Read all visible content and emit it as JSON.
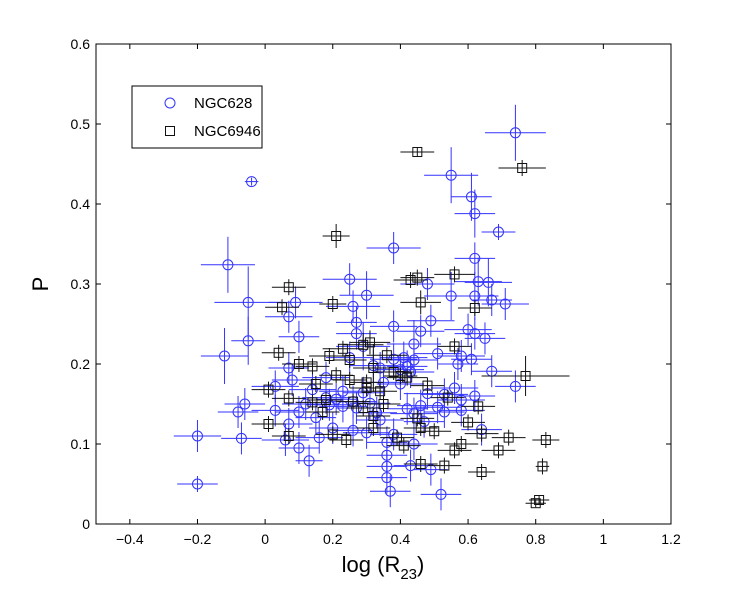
{
  "chart_data": {
    "type": "scatter",
    "title": "",
    "xlabel": "log (R",
    "xlabel_sub": "23",
    "xlabel_close": ")",
    "ylabel": "P",
    "xlim": [
      -0.5,
      1.2
    ],
    "ylim": [
      0,
      0.6
    ],
    "xticks": [
      -0.4,
      -0.2,
      0,
      0.2,
      0.4,
      0.6,
      0.8,
      1,
      1.2
    ],
    "xtick_labels": [
      "−0.4",
      "−0.2",
      "0",
      "0.2",
      "0.4",
      "0.6",
      "0.8",
      "1",
      "1.2"
    ],
    "yticks": [
      0,
      0.1,
      0.2,
      0.3,
      0.4,
      0.5,
      0.6
    ],
    "ytick_labels": [
      "0",
      "0.1",
      "0.2",
      "0.3",
      "0.4",
      "0.5",
      "0.6"
    ],
    "grid": false,
    "legend_position": "top-left",
    "series": [
      {
        "name": "NGC628",
        "marker": "circle",
        "color": "#3333ff",
        "points": [
          [
            0.74,
            0.489,
            0.09,
            0.035
          ],
          [
            -0.04,
            0.428,
            0.02,
            0.005
          ],
          [
            0.55,
            0.436,
            0.08,
            0.035
          ],
          [
            0.61,
            0.409,
            0.06,
            0.03
          ],
          [
            0.62,
            0.388,
            0.06,
            0.03
          ],
          [
            0.69,
            0.365,
            0.05,
            0.01
          ],
          [
            -0.11,
            0.324,
            0.08,
            0.035
          ],
          [
            0.38,
            0.345,
            0.08,
            0.02
          ],
          [
            0.62,
            0.332,
            0.06,
            0.02
          ],
          [
            0.25,
            0.306,
            0.08,
            0.02
          ],
          [
            0.63,
            0.303,
            0.07,
            0.03
          ],
          [
            0.66,
            0.302,
            0.07,
            0.03
          ],
          [
            0.48,
            0.3,
            0.08,
            0.02
          ],
          [
            0.3,
            0.286,
            0.08,
            0.03
          ],
          [
            0.55,
            0.285,
            0.08,
            0.03
          ],
          [
            0.62,
            0.285,
            0.07,
            0.03
          ],
          [
            -0.05,
            0.277,
            0.1,
            0.045
          ],
          [
            0.09,
            0.277,
            0.08,
            0.02
          ],
          [
            0.67,
            0.28,
            0.06,
            0.02
          ],
          [
            0.71,
            0.275,
            0.07,
            0.02
          ],
          [
            0.26,
            0.272,
            0.08,
            0.02
          ],
          [
            0.07,
            0.259,
            0.07,
            0.02
          ],
          [
            0.49,
            0.254,
            0.07,
            0.02
          ],
          [
            0.27,
            0.252,
            0.06,
            0.02
          ],
          [
            0.38,
            0.247,
            0.07,
            0.02
          ],
          [
            0.6,
            0.243,
            0.07,
            0.02
          ],
          [
            0.46,
            0.241,
            0.07,
            0.02
          ],
          [
            0.27,
            0.238,
            0.06,
            0.02
          ],
          [
            0.62,
            0.238,
            0.06,
            0.02
          ],
          [
            0.1,
            0.234,
            0.06,
            0.02
          ],
          [
            -0.05,
            0.229,
            0.05,
            0.03
          ],
          [
            0.65,
            0.232,
            0.06,
            0.02
          ],
          [
            0.44,
            0.225,
            0.08,
            0.03
          ],
          [
            0.29,
            0.222,
            0.08,
            0.03
          ],
          [
            -0.12,
            0.21,
            0.07,
            0.035
          ],
          [
            0.51,
            0.213,
            0.07,
            0.02
          ],
          [
            0.25,
            0.208,
            0.07,
            0.02
          ],
          [
            0.38,
            0.206,
            0.07,
            0.02
          ],
          [
            0.41,
            0.208,
            0.07,
            0.02
          ],
          [
            0.44,
            0.205,
            0.07,
            0.02
          ],
          [
            0.58,
            0.21,
            0.07,
            0.02
          ],
          [
            0.61,
            0.206,
            0.06,
            0.02
          ],
          [
            0.32,
            0.198,
            0.07,
            0.02
          ],
          [
            0.42,
            0.197,
            0.06,
            0.02
          ],
          [
            0.57,
            0.2,
            0.06,
            0.02
          ],
          [
            0.07,
            0.195,
            0.06,
            0.02
          ],
          [
            0.34,
            0.195,
            0.07,
            0.02
          ],
          [
            0.4,
            0.193,
            0.07,
            0.02
          ],
          [
            0.43,
            0.19,
            0.07,
            0.02
          ],
          [
            0.67,
            0.191,
            0.06,
            0.02
          ],
          [
            0.08,
            0.18,
            0.06,
            0.02
          ],
          [
            0.18,
            0.183,
            0.07,
            0.02
          ],
          [
            0.35,
            0.177,
            0.07,
            0.02
          ],
          [
            0.4,
            0.175,
            0.07,
            0.02
          ],
          [
            0.56,
            0.17,
            0.07,
            0.02
          ],
          [
            0.74,
            0.172,
            0.06,
            0.02
          ],
          [
            0.03,
            0.172,
            0.07,
            0.02
          ],
          [
            0.14,
            0.168,
            0.07,
            0.02
          ],
          [
            0.23,
            0.166,
            0.07,
            0.02
          ],
          [
            0.29,
            0.164,
            0.06,
            0.02
          ],
          [
            0.48,
            0.163,
            0.07,
            0.02
          ],
          [
            0.53,
            0.162,
            0.07,
            0.02
          ],
          [
            0.62,
            0.16,
            0.06,
            0.02
          ],
          [
            0.18,
            0.158,
            0.07,
            0.02
          ],
          [
            0.21,
            0.156,
            0.06,
            0.02
          ],
          [
            0.26,
            0.153,
            0.07,
            0.02
          ],
          [
            0.31,
            0.151,
            0.06,
            0.02
          ],
          [
            0.46,
            0.148,
            0.07,
            0.02
          ],
          [
            0.58,
            0.155,
            0.07,
            0.02
          ],
          [
            -0.06,
            0.15,
            0.06,
            0.02
          ],
          [
            0.12,
            0.15,
            0.07,
            0.02
          ],
          [
            0.19,
            0.149,
            0.07,
            0.02
          ],
          [
            0.23,
            0.147,
            0.07,
            0.02
          ],
          [
            0.27,
            0.145,
            0.06,
            0.02
          ],
          [
            0.42,
            0.144,
            0.06,
            0.02
          ],
          [
            0.51,
            0.146,
            0.07,
            0.02
          ],
          [
            0.58,
            0.142,
            0.07,
            0.02
          ],
          [
            -0.08,
            0.14,
            0.06,
            0.02
          ],
          [
            0.03,
            0.142,
            0.07,
            0.02
          ],
          [
            0.1,
            0.14,
            0.07,
            0.02
          ],
          [
            0.33,
            0.139,
            0.06,
            0.02
          ],
          [
            0.44,
            0.138,
            0.07,
            0.02
          ],
          [
            0.53,
            0.14,
            0.06,
            0.02
          ],
          [
            0.15,
            0.133,
            0.06,
            0.02
          ],
          [
            0.34,
            0.13,
            0.07,
            0.02
          ],
          [
            0.47,
            0.128,
            0.06,
            0.02
          ],
          [
            0.07,
            0.125,
            0.07,
            0.02
          ],
          [
            0.2,
            0.12,
            0.07,
            0.02
          ],
          [
            0.26,
            0.117,
            0.06,
            0.02
          ],
          [
            0.64,
            0.118,
            0.06,
            0.02
          ],
          [
            0.3,
            0.114,
            0.07,
            0.02
          ],
          [
            0.38,
            0.112,
            0.07,
            0.02
          ],
          [
            -0.2,
            0.11,
            0.07,
            0.02
          ],
          [
            0.16,
            0.108,
            0.07,
            0.02
          ],
          [
            -0.07,
            0.107,
            0.06,
            0.02
          ],
          [
            0.06,
            0.105,
            0.07,
            0.02
          ],
          [
            0.36,
            0.102,
            0.06,
            0.02
          ],
          [
            0.44,
            0.1,
            0.07,
            0.02
          ],
          [
            0.1,
            0.095,
            0.06,
            0.02
          ],
          [
            0.36,
            0.086,
            0.06,
            0.02
          ],
          [
            0.13,
            0.079,
            0.04,
            0.02
          ],
          [
            0.43,
            0.073,
            0.05,
            0.02
          ],
          [
            0.36,
            0.072,
            0.06,
            0.02
          ],
          [
            0.49,
            0.068,
            0.05,
            0.02
          ],
          [
            0.36,
            0.058,
            0.06,
            0.02
          ],
          [
            -0.2,
            0.05,
            0.06,
            0.01
          ],
          [
            0.37,
            0.041,
            0.06,
            0.02
          ],
          [
            0.52,
            0.037,
            0.06,
            0.02
          ]
        ]
      },
      {
        "name": "NGC6946",
        "marker": "square",
        "color": "#111111",
        "points": [
          [
            0.45,
            0.465,
            0.05,
            0.005
          ],
          [
            0.76,
            0.445,
            0.07,
            0.01
          ],
          [
            0.21,
            0.36,
            0.04,
            0.015
          ],
          [
            0.56,
            0.312,
            0.06,
            0.01
          ],
          [
            0.45,
            0.308,
            0.05,
            0.01
          ],
          [
            0.43,
            0.305,
            0.05,
            0.01
          ],
          [
            0.07,
            0.296,
            0.05,
            0.01
          ],
          [
            0.46,
            0.277,
            0.06,
            0.015
          ],
          [
            0.2,
            0.275,
            0.04,
            0.01
          ],
          [
            0.05,
            0.271,
            0.05,
            0.01
          ],
          [
            0.62,
            0.27,
            0.05,
            0.01
          ],
          [
            0.31,
            0.227,
            0.06,
            0.015
          ],
          [
            0.29,
            0.224,
            0.06,
            0.015
          ],
          [
            0.23,
            0.219,
            0.06,
            0.01
          ],
          [
            0.56,
            0.222,
            0.05,
            0.01
          ],
          [
            0.04,
            0.214,
            0.05,
            0.01
          ],
          [
            0.19,
            0.21,
            0.06,
            0.01
          ],
          [
            0.36,
            0.211,
            0.06,
            0.01
          ],
          [
            0.25,
            0.205,
            0.05,
            0.01
          ],
          [
            0.1,
            0.2,
            0.05,
            0.01
          ],
          [
            0.14,
            0.197,
            0.05,
            0.01
          ],
          [
            0.32,
            0.195,
            0.06,
            0.03
          ],
          [
            0.38,
            0.19,
            0.06,
            0.01
          ],
          [
            0.21,
            0.186,
            0.05,
            0.01
          ],
          [
            0.77,
            0.185,
            0.13,
            0.025
          ],
          [
            0.4,
            0.185,
            0.05,
            0.01
          ],
          [
            0.42,
            0.183,
            0.06,
            0.01
          ],
          [
            0.25,
            0.18,
            0.05,
            0.01
          ],
          [
            0.3,
            0.177,
            0.05,
            0.01
          ],
          [
            0.15,
            0.175,
            0.05,
            0.01
          ],
          [
            0.48,
            0.173,
            0.05,
            0.01
          ],
          [
            0.3,
            0.17,
            0.05,
            0.01
          ],
          [
            0.01,
            0.168,
            0.05,
            0.01
          ],
          [
            0.34,
            0.166,
            0.05,
            0.01
          ],
          [
            0.54,
            0.158,
            0.05,
            0.01
          ],
          [
            0.26,
            0.153,
            0.05,
            0.01
          ],
          [
            0.07,
            0.157,
            0.05,
            0.01
          ],
          [
            0.18,
            0.155,
            0.05,
            0.01
          ],
          [
            0.14,
            0.152,
            0.05,
            0.01
          ],
          [
            0.35,
            0.15,
            0.05,
            0.01
          ],
          [
            0.63,
            0.147,
            0.05,
            0.01
          ],
          [
            0.29,
            0.145,
            0.05,
            0.01
          ],
          [
            0.17,
            0.14,
            0.05,
            0.01
          ],
          [
            0.32,
            0.135,
            0.05,
            0.01
          ],
          [
            0.45,
            0.132,
            0.05,
            0.01
          ],
          [
            0.6,
            0.127,
            0.05,
            0.01
          ],
          [
            0.01,
            0.125,
            0.05,
            0.01
          ],
          [
            0.32,
            0.12,
            0.05,
            0.01
          ],
          [
            0.46,
            0.12,
            0.05,
            0.01
          ],
          [
            0.5,
            0.116,
            0.05,
            0.01
          ],
          [
            0.64,
            0.113,
            0.05,
            0.01
          ],
          [
            0.72,
            0.108,
            0.05,
            0.01
          ],
          [
            0.83,
            0.105,
            0.04,
            0.01
          ],
          [
            0.2,
            0.112,
            0.05,
            0.01
          ],
          [
            0.24,
            0.105,
            0.05,
            0.01
          ],
          [
            0.39,
            0.108,
            0.05,
            0.01
          ],
          [
            0.07,
            0.11,
            0.05,
            0.01
          ],
          [
            0.58,
            0.1,
            0.05,
            0.01
          ],
          [
            0.41,
            0.098,
            0.05,
            0.01
          ],
          [
            0.56,
            0.092,
            0.05,
            0.01
          ],
          [
            0.69,
            0.092,
            0.05,
            0.01
          ],
          [
            0.46,
            0.075,
            0.05,
            0.01
          ],
          [
            0.53,
            0.073,
            0.05,
            0.01
          ],
          [
            0.82,
            0.072,
            0.02,
            0.01
          ],
          [
            0.64,
            0.065,
            0.04,
            0.01
          ],
          [
            0.81,
            0.03,
            0.03,
            0.005
          ],
          [
            0.8,
            0.026,
            0.03,
            0.005
          ]
        ]
      }
    ]
  }
}
